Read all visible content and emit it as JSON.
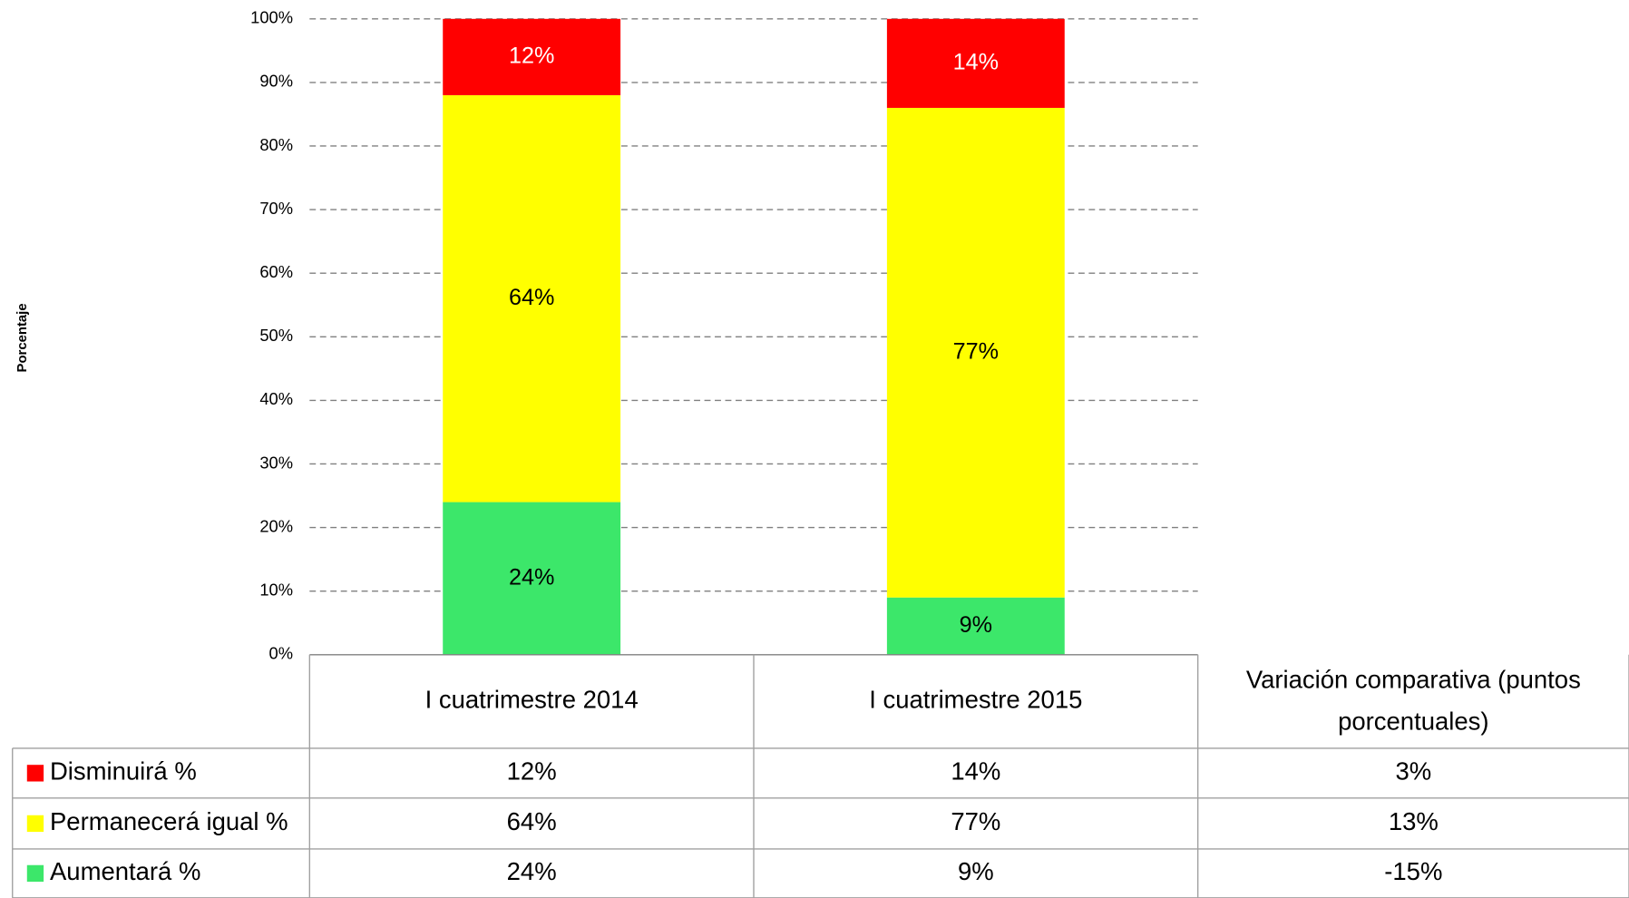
{
  "chart_data": {
    "type": "stacked_bar",
    "y_label": "Porcentaje",
    "categories": [
      "I cuatrimestre 2014",
      "I cuatrimestre 2015"
    ],
    "variation_header": "Variación comparativa (puntos porcentuales)",
    "series": [
      {
        "name": "Disminuirá %",
        "color": "#ff0000",
        "label_color": "#ffffff",
        "values": [
          12,
          14
        ],
        "value_labels": [
          "12%",
          "14%"
        ],
        "variation": 3,
        "variation_label": "3%"
      },
      {
        "name": "Permanecerá igual %",
        "color": "#ffff00",
        "label_color": "#000000",
        "values": [
          64,
          77
        ],
        "value_labels": [
          "64%",
          "77%"
        ],
        "variation": 13,
        "variation_label": "13%"
      },
      {
        "name": "Aumentará %",
        "color": "#3ce76a",
        "label_color": "#000000",
        "values": [
          24,
          9
        ],
        "value_labels": [
          "24%",
          "9%"
        ],
        "variation": -15,
        "variation_label": "-15%"
      }
    ],
    "ylim": [
      0,
      100
    ],
    "yticks": [
      {
        "value": 0,
        "label": "0%"
      },
      {
        "value": 10,
        "label": "10%"
      },
      {
        "value": 20,
        "label": "20%"
      },
      {
        "value": 30,
        "label": "30%"
      },
      {
        "value": 40,
        "label": "40%"
      },
      {
        "value": 50,
        "label": "50%"
      },
      {
        "value": 60,
        "label": "60%"
      },
      {
        "value": 70,
        "label": "70%"
      },
      {
        "value": 80,
        "label": "80%"
      },
      {
        "value": 90,
        "label": "90%"
      },
      {
        "value": 100,
        "label": "100%"
      }
    ],
    "grid": true
  }
}
